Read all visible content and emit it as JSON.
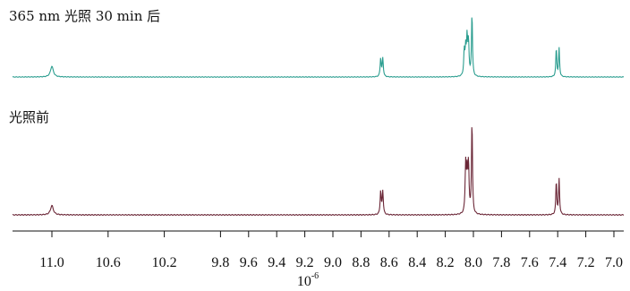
{
  "chart_data": {
    "type": "line",
    "title": "",
    "xlabel": "10",
    "xlabel_exponent": "-6",
    "ylabel": "",
    "x_reversed": true,
    "xlim": [
      11.0,
      7.0
    ],
    "grid": false,
    "legend": "none",
    "ticks": [
      {
        "value": 11.0,
        "label": "11.0"
      },
      {
        "value": 10.6,
        "label": "10.6"
      },
      {
        "value": 10.2,
        "label": "10.2"
      },
      {
        "value": 9.8,
        "label": "9.8"
      },
      {
        "value": 9.6,
        "label": "9.6"
      },
      {
        "value": 9.4,
        "label": "9.4"
      },
      {
        "value": 9.2,
        "label": "9.2"
      },
      {
        "value": 9.0,
        "label": "9.0"
      },
      {
        "value": 8.8,
        "label": "8.8"
      },
      {
        "value": 8.6,
        "label": "8.6"
      },
      {
        "value": 8.4,
        "label": "8.4"
      },
      {
        "value": 8.2,
        "label": "8.2"
      },
      {
        "value": 8.0,
        "label": "8.0"
      },
      {
        "value": 7.8,
        "label": "7.8"
      },
      {
        "value": 7.6,
        "label": "7.6"
      },
      {
        "value": 7.4,
        "label": "7.4"
      },
      {
        "value": 7.2,
        "label": "7.2"
      },
      {
        "value": 7.0,
        "label": "7.0"
      }
    ],
    "series": [
      {
        "label": "365 nm 光照 30 min 后",
        "color": "#2a9d8f",
        "peaks": [
          {
            "x": 11.0,
            "h": 0.17,
            "w": 0.012
          },
          {
            "x": 8.66,
            "h": 0.29,
            "w": 0.0045
          },
          {
            "x": 8.645,
            "h": 0.29,
            "w": 0.0045
          },
          {
            "x": 8.065,
            "h": 0.38,
            "w": 0.0045
          },
          {
            "x": 8.055,
            "h": 0.4,
            "w": 0.0045
          },
          {
            "x": 8.045,
            "h": 0.56,
            "w": 0.0045
          },
          {
            "x": 8.035,
            "h": 0.52,
            "w": 0.0045
          },
          {
            "x": 8.01,
            "h": 1.0,
            "w": 0.004
          },
          {
            "x": 7.41,
            "h": 0.45,
            "w": 0.004
          },
          {
            "x": 7.39,
            "h": 0.45,
            "w": 0.004
          }
        ]
      },
      {
        "label": "光照前",
        "color": "#6b2737",
        "peaks": [
          {
            "x": 11.0,
            "h": 0.1,
            "w": 0.012
          },
          {
            "x": 8.66,
            "h": 0.25,
            "w": 0.0045
          },
          {
            "x": 8.645,
            "h": 0.25,
            "w": 0.0045
          },
          {
            "x": 8.055,
            "h": 0.52,
            "w": 0.0045
          },
          {
            "x": 8.045,
            "h": 0.4,
            "w": 0.0045
          },
          {
            "x": 8.035,
            "h": 0.52,
            "w": 0.0045
          },
          {
            "x": 8.01,
            "h": 1.0,
            "w": 0.004
          },
          {
            "x": 7.41,
            "h": 0.36,
            "w": 0.004
          },
          {
            "x": 7.39,
            "h": 0.38,
            "w": 0.004
          }
        ]
      }
    ]
  }
}
